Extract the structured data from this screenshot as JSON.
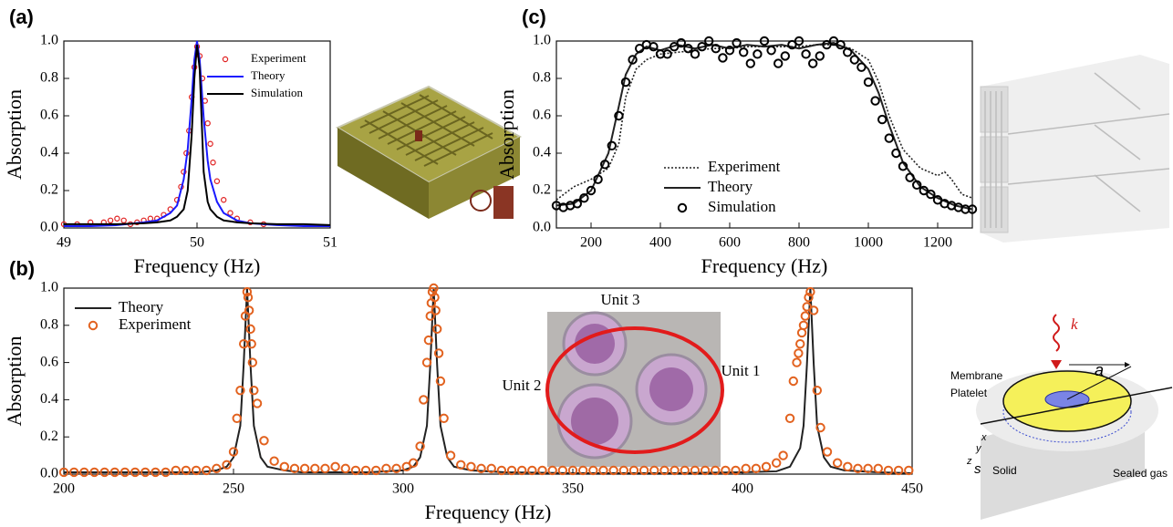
{
  "chart_data": [
    {
      "type": "line",
      "label": "(a)",
      "x_label": "Frequency (Hz)",
      "y_label": "Absorption",
      "xlim": [
        49,
        51
      ],
      "xticks": [
        49,
        50,
        51
      ],
      "ylim": [
        0,
        1
      ],
      "yticks": [
        {
          "value": 0,
          "label": "0.0"
        },
        0.2,
        0.4,
        0.6,
        0.8,
        {
          "value": 1,
          "label": "1.0"
        }
      ],
      "legend": "upper right",
      "series": [
        {
          "name": "Experiment",
          "color": "#e02020",
          "style": "markers",
          "x": [
            49.0,
            49.1,
            49.2,
            49.3,
            49.35,
            49.4,
            49.45,
            49.5,
            49.55,
            49.6,
            49.65,
            49.7,
            49.75,
            49.8,
            49.85,
            49.88,
            49.9,
            49.92,
            49.94,
            49.96,
            49.98,
            50.0,
            50.02,
            50.04,
            50.06,
            50.08,
            50.1,
            50.12,
            50.15,
            50.2,
            50.25,
            50.3,
            50.4,
            50.5
          ],
          "values": [
            0.02,
            0.02,
            0.03,
            0.03,
            0.04,
            0.05,
            0.04,
            0.02,
            0.03,
            0.04,
            0.05,
            0.05,
            0.07,
            0.1,
            0.15,
            0.22,
            0.3,
            0.4,
            0.52,
            0.7,
            0.86,
            0.97,
            0.92,
            0.8,
            0.68,
            0.56,
            0.45,
            0.35,
            0.25,
            0.15,
            0.08,
            0.05,
            0.03,
            0.02
          ]
        },
        {
          "name": "Theory",
          "color": "#1a1aff",
          "style": "line",
          "x": [
            49,
            49.2,
            49.4,
            49.6,
            49.7,
            49.8,
            49.85,
            49.9,
            49.93,
            49.96,
            49.98,
            50,
            50.02,
            50.05,
            50.08,
            50.1,
            50.15,
            50.2,
            50.3,
            50.4,
            50.6,
            50.8,
            51
          ],
          "values": [
            0.01,
            0.01,
            0.015,
            0.03,
            0.04,
            0.08,
            0.12,
            0.26,
            0.42,
            0.69,
            0.9,
            1.0,
            0.9,
            0.59,
            0.36,
            0.26,
            0.14,
            0.08,
            0.04,
            0.025,
            0.015,
            0.01,
            0.01
          ]
        },
        {
          "name": "Simulation",
          "color": "#000000",
          "style": "line",
          "x": [
            49,
            49.2,
            49.4,
            49.6,
            49.7,
            49.8,
            49.85,
            49.9,
            49.93,
            49.96,
            49.98,
            50,
            50.02,
            50.05,
            50.08,
            50.1,
            50.15,
            50.2,
            50.3,
            50.4,
            50.6,
            50.8,
            51
          ],
          "values": [
            0.02,
            0.02,
            0.02,
            0.025,
            0.03,
            0.04,
            0.06,
            0.1,
            0.2,
            0.5,
            0.8,
            0.98,
            0.85,
            0.3,
            0.14,
            0.1,
            0.06,
            0.04,
            0.03,
            0.025,
            0.02,
            0.02,
            0.015
          ]
        }
      ]
    },
    {
      "type": "line",
      "label": "(b)",
      "x_label": "Frequency (Hz)",
      "y_label": "Absorption",
      "xlim": [
        200,
        450
      ],
      "xticks": [
        200,
        250,
        300,
        350,
        400,
        450
      ],
      "ylim": [
        0,
        1
      ],
      "yticks": [
        {
          "value": 0,
          "label": "0.0"
        },
        0.2,
        0.4,
        0.6,
        0.8,
        {
          "value": 1,
          "label": "1.0"
        }
      ],
      "legend": "upper left",
      "series": [
        {
          "name": "Theory",
          "color": "#222222",
          "style": "line",
          "x": [
            200,
            220,
            240,
            245,
            248,
            250,
            252,
            253,
            254,
            255,
            256,
            258,
            260,
            265,
            270,
            280,
            290,
            300,
            303,
            305,
            307,
            308,
            309,
            310,
            311,
            313,
            315,
            320,
            330,
            350,
            380,
            400,
            410,
            414,
            417,
            418,
            419,
            420,
            421,
            422,
            424,
            426,
            430,
            440,
            450
          ],
          "values": [
            0.01,
            0.01,
            0.01,
            0.02,
            0.04,
            0.09,
            0.26,
            0.59,
            1.0,
            0.59,
            0.26,
            0.09,
            0.04,
            0.02,
            0.01,
            0.01,
            0.01,
            0.02,
            0.04,
            0.09,
            0.26,
            0.59,
            1.0,
            0.59,
            0.26,
            0.09,
            0.04,
            0.02,
            0.01,
            0.005,
            0.005,
            0.01,
            0.015,
            0.04,
            0.14,
            0.26,
            0.59,
            1.0,
            0.59,
            0.26,
            0.09,
            0.04,
            0.02,
            0.01,
            0.005
          ]
        },
        {
          "name": "Experiment",
          "color": "#e2621f",
          "style": "markers",
          "x": [
            200,
            203,
            206,
            209,
            212,
            215,
            218,
            221,
            224,
            227,
            230,
            233,
            236,
            239,
            242,
            245,
            248,
            250,
            251,
            252,
            253,
            253.5,
            254,
            254.3,
            254.6,
            255,
            255.3,
            255.6,
            256,
            257,
            259,
            262,
            265,
            268,
            271,
            274,
            277,
            280,
            283,
            286,
            289,
            292,
            295,
            298,
            301,
            303,
            305,
            306,
            307,
            307.5,
            308,
            308.3,
            308.6,
            309,
            309.3,
            309.6,
            310,
            310.5,
            311,
            312,
            314,
            317,
            320,
            323,
            326,
            329,
            332,
            335,
            338,
            341,
            344,
            347,
            350,
            353,
            356,
            359,
            362,
            365,
            368,
            371,
            374,
            377,
            380,
            383,
            386,
            389,
            392,
            395,
            398,
            401,
            404,
            407,
            410,
            412,
            414,
            415,
            416,
            416.5,
            417,
            417.5,
            418,
            418.5,
            419,
            419.5,
            420,
            421,
            422,
            423,
            425,
            428,
            431,
            434,
            437,
            440,
            443,
            446,
            449
          ],
          "values": [
            0.01,
            0.01,
            0.01,
            0.01,
            0.01,
            0.01,
            0.01,
            0.01,
            0.01,
            0.01,
            0.01,
            0.02,
            0.02,
            0.02,
            0.02,
            0.03,
            0.05,
            0.12,
            0.3,
            0.45,
            0.7,
            0.85,
            0.98,
            0.95,
            0.88,
            0.78,
            0.7,
            0.6,
            0.45,
            0.38,
            0.18,
            0.07,
            0.04,
            0.03,
            0.03,
            0.03,
            0.03,
            0.04,
            0.03,
            0.02,
            0.02,
            0.02,
            0.03,
            0.03,
            0.04,
            0.06,
            0.15,
            0.4,
            0.6,
            0.72,
            0.85,
            0.92,
            0.98,
            1.0,
            0.95,
            0.88,
            0.78,
            0.65,
            0.5,
            0.3,
            0.1,
            0.05,
            0.04,
            0.03,
            0.03,
            0.02,
            0.02,
            0.02,
            0.02,
            0.02,
            0.02,
            0.02,
            0.02,
            0.02,
            0.02,
            0.02,
            0.02,
            0.02,
            0.02,
            0.02,
            0.02,
            0.02,
            0.02,
            0.02,
            0.02,
            0.02,
            0.02,
            0.02,
            0.02,
            0.03,
            0.03,
            0.04,
            0.06,
            0.1,
            0.3,
            0.5,
            0.6,
            0.65,
            0.7,
            0.76,
            0.8,
            0.85,
            0.9,
            0.95,
            0.98,
            0.88,
            0.45,
            0.25,
            0.12,
            0.06,
            0.04,
            0.03,
            0.03,
            0.03,
            0.02,
            0.02,
            0.02
          ]
        }
      ]
    },
    {
      "type": "line",
      "label": "(c)",
      "x_label": "Frequency (Hz)",
      "y_label": "Absorption",
      "xlim": [
        100,
        1300
      ],
      "xticks": [
        200,
        400,
        600,
        800,
        1000,
        1200
      ],
      "ylim": [
        0,
        1
      ],
      "yticks": [
        {
          "value": 0,
          "label": "0.0"
        },
        0.2,
        0.4,
        0.6,
        0.8,
        {
          "value": 1,
          "label": "1.0"
        }
      ],
      "legend": "lower center",
      "series": [
        {
          "name": "Experiment",
          "color": "#222222",
          "style": "dotted",
          "x": [
            100,
            150,
            200,
            250,
            280,
            300,
            330,
            360,
            400,
            450,
            500,
            550,
            600,
            650,
            700,
            750,
            800,
            850,
            900,
            950,
            1000,
            1030,
            1060,
            1100,
            1150,
            1200,
            1220,
            1240,
            1270,
            1300
          ],
          "values": [
            0.15,
            0.22,
            0.26,
            0.32,
            0.45,
            0.7,
            0.85,
            0.9,
            0.93,
            0.94,
            0.95,
            0.96,
            0.96,
            0.97,
            0.97,
            0.97,
            0.97,
            0.98,
            0.98,
            0.96,
            0.9,
            0.78,
            0.6,
            0.42,
            0.32,
            0.28,
            0.3,
            0.26,
            0.18,
            0.16
          ]
        },
        {
          "name": "Theory",
          "color": "#222222",
          "style": "line",
          "x": [
            100,
            150,
            200,
            250,
            280,
            300,
            330,
            360,
            400,
            450,
            500,
            550,
            600,
            650,
            700,
            750,
            800,
            850,
            900,
            950,
            1000,
            1030,
            1060,
            1100,
            1150,
            1200,
            1250,
            1300
          ],
          "values": [
            0.12,
            0.13,
            0.2,
            0.4,
            0.65,
            0.82,
            0.93,
            0.97,
            0.95,
            0.98,
            0.96,
            0.98,
            0.96,
            0.98,
            0.97,
            0.98,
            0.96,
            0.98,
            0.99,
            0.95,
            0.85,
            0.72,
            0.55,
            0.35,
            0.22,
            0.16,
            0.12,
            0.1
          ]
        },
        {
          "name": "Simulation",
          "color": "#000000",
          "style": "markers",
          "x": [
            100,
            120,
            140,
            160,
            180,
            200,
            220,
            240,
            260,
            280,
            300,
            320,
            340,
            360,
            380,
            400,
            420,
            440,
            460,
            480,
            500,
            520,
            540,
            560,
            580,
            600,
            620,
            640,
            660,
            680,
            700,
            720,
            740,
            760,
            780,
            800,
            820,
            840,
            860,
            880,
            900,
            920,
            940,
            960,
            980,
            1000,
            1020,
            1040,
            1060,
            1080,
            1100,
            1120,
            1140,
            1160,
            1180,
            1200,
            1220,
            1240,
            1260,
            1280,
            1300
          ],
          "values": [
            0.12,
            0.11,
            0.12,
            0.13,
            0.16,
            0.2,
            0.26,
            0.34,
            0.44,
            0.6,
            0.78,
            0.9,
            0.96,
            0.98,
            0.97,
            0.93,
            0.93,
            0.97,
            0.99,
            0.96,
            0.93,
            0.97,
            1.0,
            0.96,
            0.91,
            0.95,
            0.99,
            0.94,
            0.88,
            0.93,
            1.0,
            0.95,
            0.88,
            0.92,
            0.98,
            1.0,
            0.93,
            0.88,
            0.92,
            0.98,
            1.0,
            0.98,
            0.94,
            0.9,
            0.86,
            0.78,
            0.68,
            0.58,
            0.48,
            0.4,
            0.33,
            0.27,
            0.23,
            0.2,
            0.18,
            0.15,
            0.13,
            0.12,
            0.11,
            0.1,
            0.1
          ]
        }
      ]
    }
  ],
  "photo": {
    "labels": [
      "Unit 3",
      "Unit 2",
      "Unit 1"
    ]
  },
  "diagram": {
    "labels": [
      "Membrane",
      "Platelet",
      "a",
      "s",
      "Solid",
      "Sealed gas",
      "x",
      "y",
      "z",
      "k"
    ]
  }
}
